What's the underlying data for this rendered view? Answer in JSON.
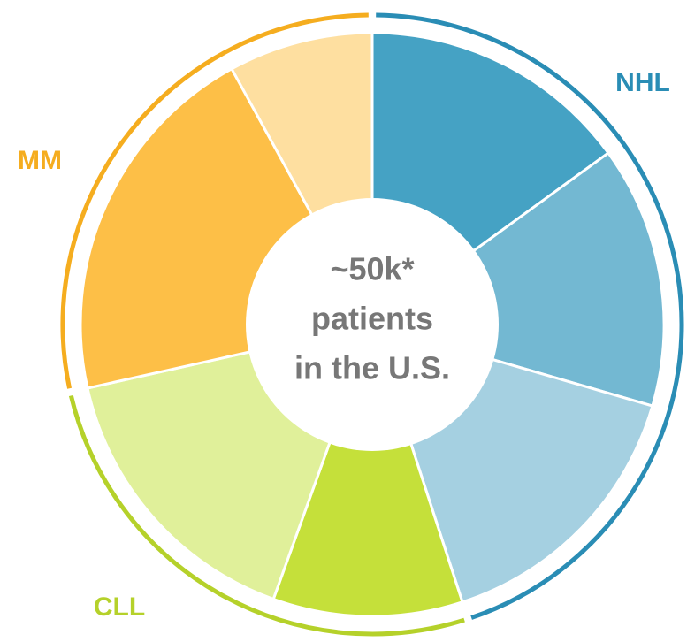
{
  "chart_data": {
    "type": "donut",
    "center_text": [
      "~50k*",
      "patients",
      "in the U.S."
    ],
    "groups": [
      {
        "name": "NHL",
        "color": "#2a8db5",
        "segments": [
          {
            "value": 15,
            "color": "#45a2c4"
          },
          {
            "value": 14.5,
            "color": "#73b8d2"
          },
          {
            "value": 15.5,
            "color": "#a5d0e1"
          }
        ]
      },
      {
        "name": "CLL",
        "color": "#b5d12a",
        "segments": [
          {
            "value": 10.5,
            "color": "#c5e03a"
          },
          {
            "value": 16,
            "color": "#e0f09a"
          }
        ]
      },
      {
        "name": "MM",
        "color": "#f5ad1f",
        "segments": [
          {
            "value": 20.5,
            "color": "#fdbf47"
          },
          {
            "value": 8,
            "color": "#fedfa0"
          }
        ]
      }
    ]
  }
}
